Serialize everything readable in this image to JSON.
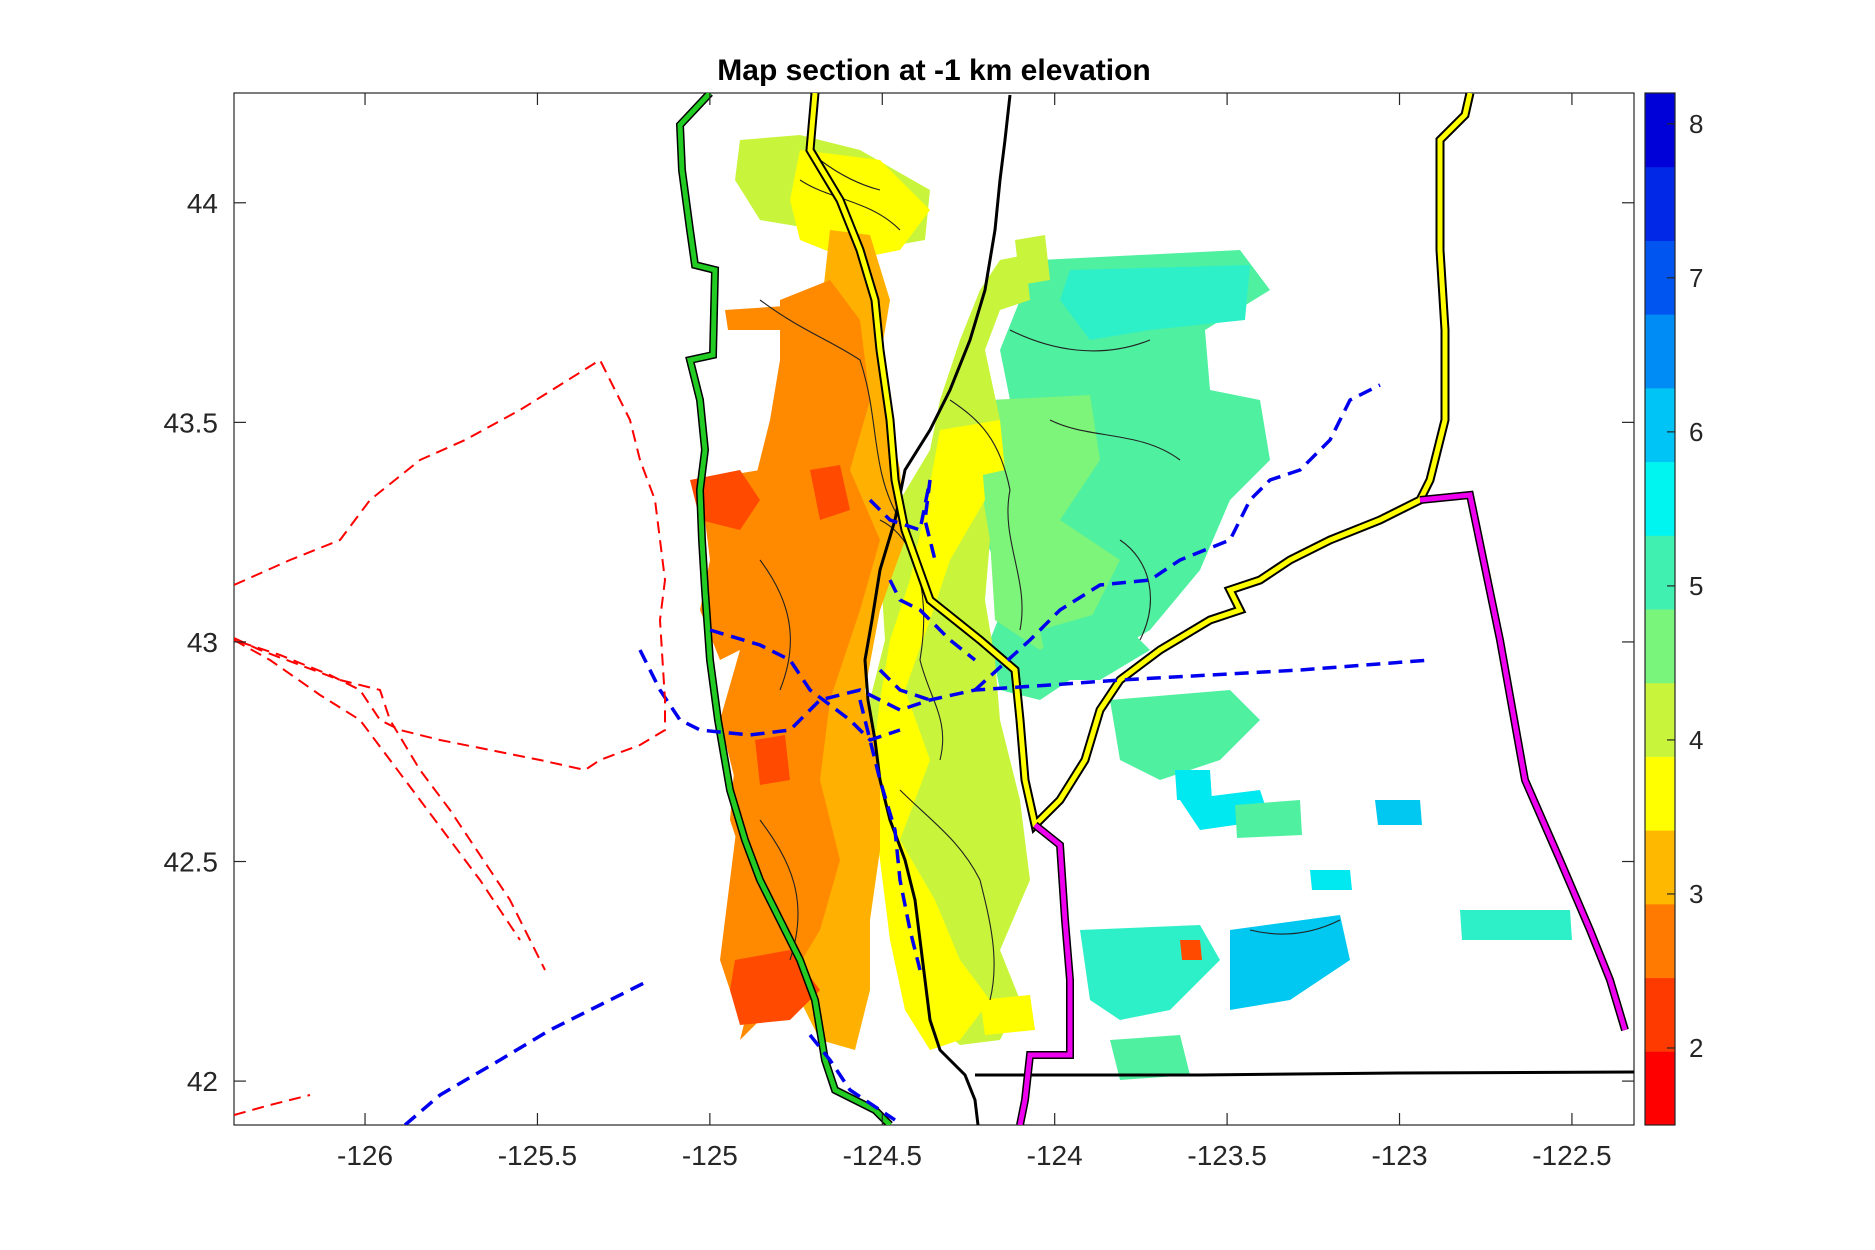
{
  "figure": {
    "title": "Map section at -1 km elevation"
  },
  "map": {
    "x_ticks": [
      "-126",
      "-125.5",
      "-125",
      "-124.5",
      "-124",
      "-123.5",
      "-123",
      "-122.5"
    ],
    "x_tick_values": [
      -126,
      -125.5,
      -125,
      -124.5,
      -124,
      -123.5,
      -123,
      -122.5
    ],
    "y_ticks": [
      "42",
      "42.5",
      "43",
      "43.5",
      "44"
    ],
    "y_tick_values": [
      42,
      42.5,
      43,
      43.5,
      44
    ],
    "xlim": [
      -126.38,
      -122.32
    ],
    "ylim": [
      41.9,
      44.25
    ]
  },
  "colorbar": {
    "range": [
      1.5,
      8.2
    ],
    "tick_labels": [
      "2",
      "3",
      "4",
      "5",
      "6",
      "7",
      "8"
    ],
    "tick_values": [
      2,
      3,
      4,
      5,
      6,
      7,
      8
    ],
    "colors": [
      "#ff0000",
      "#ff3a00",
      "#ff7a00",
      "#ffb800",
      "#ffff00",
      "#c8f53c",
      "#78f57a",
      "#3ff0b0",
      "#00f5f0",
      "#00c4f5",
      "#008cf5",
      "#0055f0",
      "#0028e6",
      "#0000d8"
    ]
  },
  "colors": {
    "green_line": "#22cc22",
    "yellow_line": "#ffff00",
    "magenta_line": "#ee00ee",
    "blue_dashed": "#0000ee",
    "red_dashed": "#ff0000"
  }
}
